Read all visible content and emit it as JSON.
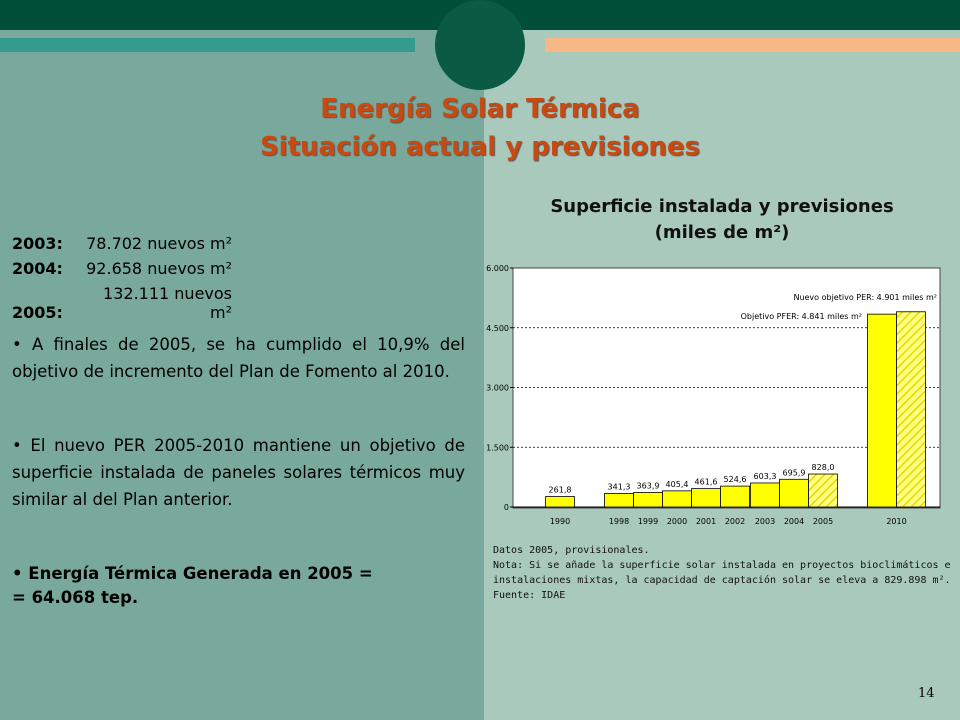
{
  "slide": {
    "title": [
      "Energía Solar Térmica",
      "Situación actual y previsiones"
    ],
    "stats": [
      {
        "year": "2003:",
        "value": "78.702 nuevos m²"
      },
      {
        "year": "2004:",
        "value": "92.658 nuevos m²"
      },
      {
        "year": "2005:",
        "value": "132.111 nuevos m²"
      }
    ],
    "bullets": [
      "A finales de 2005, se ha cumplido el 10,9% del objetivo de incremento del Plan de Fomento al 2010.",
      "El nuevo PER 2005-2010 mantiene un objetivo de superficie instalada de paneles solares térmicos muy similar al del Plan anterior."
    ],
    "bold_bullet": [
      "Energía Térmica Generada en 2005 =",
      "= 64.068 tep."
    ],
    "notes": [
      "Datos 2005, provisionales.",
      "Nota: Si se añade la superficie solar instalada en proyectos bioclimáticos e instalaciones mixtas, la capacidad de captación solar se eleva a 829.898 m².",
      "Fuente: IDAE"
    ],
    "page_number": "14"
  },
  "chart_data": {
    "type": "bar",
    "title": [
      "Superficie instalada y previsiones",
      "(miles de m²)"
    ],
    "categories": [
      "1990",
      "1998",
      "1999",
      "2000",
      "2001",
      "2002",
      "2003",
      "2004",
      "2005",
      "2010",
      null
    ],
    "values": [
      261.8,
      341.3,
      363.9,
      405.4,
      461.6,
      524.6,
      603.3,
      695.9,
      828.0,
      4841,
      4901
    ],
    "value_labels": [
      "261,8",
      "341,3",
      "363,9",
      "405,4",
      "461,6",
      "524,6",
      "603,3",
      "695,9",
      "828,0",
      null,
      null
    ],
    "hatched": [
      false,
      false,
      false,
      false,
      false,
      false,
      false,
      false,
      true,
      false,
      true
    ],
    "color": "#ffff00",
    "annotations": [
      "Nuevo objetivo PER: 4.901 miles m²",
      "Objetivo PFER: 4.841 miles m²"
    ],
    "ylim": [
      0,
      6000
    ],
    "yticks": [
      {
        "value": 0,
        "label": "0"
      },
      {
        "value": 1500,
        "label": "1.500"
      },
      {
        "value": 3000,
        "label": "3.000"
      },
      {
        "value": 4500,
        "label": "4.500"
      },
      {
        "value": 6000,
        "label": "6.000"
      }
    ],
    "grid": true
  }
}
